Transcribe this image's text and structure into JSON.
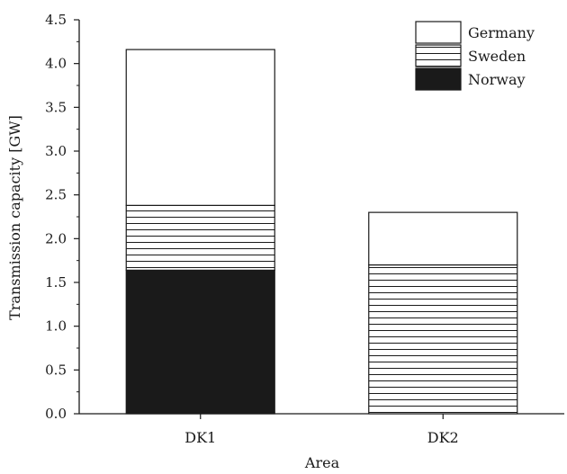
{
  "chart_data": {
    "type": "bar",
    "stacked": true,
    "categories": [
      "DK1",
      "DK2"
    ],
    "series": [
      {
        "name": "Norway",
        "values": [
          1.64,
          0.0
        ],
        "fill": "solid",
        "color": "#1a1a1a"
      },
      {
        "name": "Sweden",
        "values": [
          0.74,
          1.7
        ],
        "fill": "horizontal-lines",
        "color": "#1a1a1a"
      },
      {
        "name": "Germany",
        "values": [
          1.78,
          0.6
        ],
        "fill": "none",
        "color": "#ffffff"
      }
    ],
    "title": "",
    "xlabel": "Area",
    "ylabel": "Transmission capacity [GW]",
    "ylim": [
      0,
      4.5
    ],
    "yticks": [
      "0.0",
      "0.5",
      "1.0",
      "1.5",
      "2.0",
      "2.5",
      "3.0",
      "3.5",
      "4.0",
      "4.5"
    ],
    "grid": false,
    "legend_position": "top-right",
    "legend_order": [
      "Germany",
      "Sweden",
      "Norway"
    ]
  }
}
